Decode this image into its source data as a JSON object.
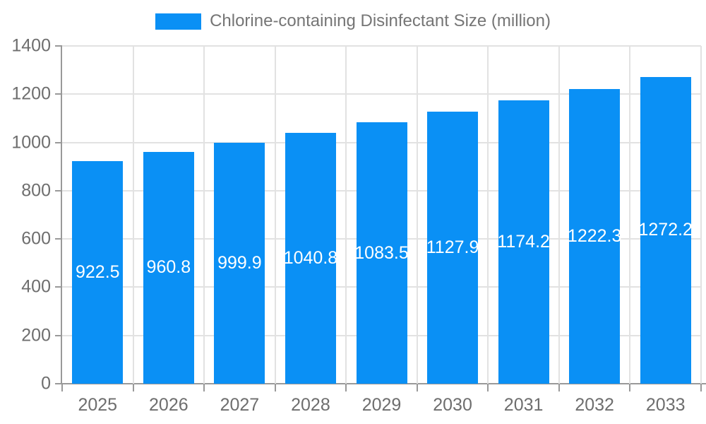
{
  "chart_data": {
    "type": "bar",
    "title": "",
    "xlabel": "",
    "ylabel": "",
    "categories": [
      "2025",
      "2026",
      "2027",
      "2028",
      "2029",
      "2030",
      "2031",
      "2032",
      "2033"
    ],
    "series": [
      {
        "name": "Chlorine-containing Disinfectant Size (million)",
        "values": [
          922.5,
          960.8,
          999.9,
          1040.8,
          1083.5,
          1127.9,
          1174.2,
          1222.3,
          1272.2
        ]
      }
    ],
    "value_labels": [
      "922.5",
      "960.8",
      "999.9",
      "1040.8",
      "1083.5",
      "1127.9",
      "1174.2",
      "1222.3",
      "1272.2"
    ],
    "ylim": [
      0,
      1400
    ],
    "ytick_step": 200,
    "ytick_labels": [
      "0",
      "200",
      "400",
      "600",
      "800",
      "1000",
      "1200",
      "1400"
    ],
    "grid": "horizontal-and-vertical",
    "legend_position": "top-center",
    "bar_label_position": "inside-middle",
    "colors": {
      "bar": "#0A90F5",
      "bar_label": "#FFFFFF",
      "axis_line": "#999999",
      "grid_line": "#E2E2E2",
      "tick_label": "#6E6E6E",
      "legend_text": "#757575",
      "background": "#FFFFFF"
    }
  }
}
